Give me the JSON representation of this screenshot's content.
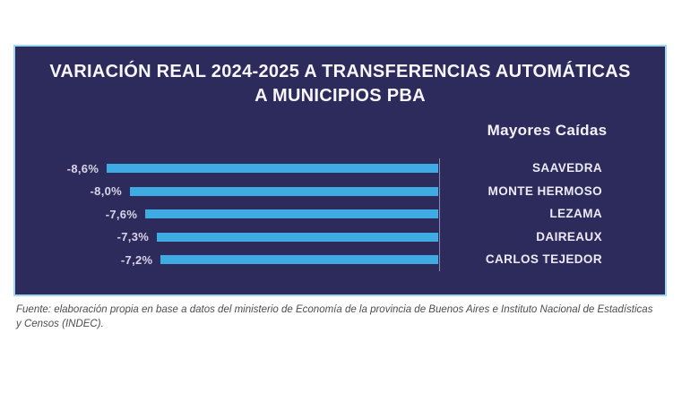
{
  "panel": {
    "title_line1": "VARIACIÓN REAL 2024-2025 A TRANSFERENCIAS AUTOMÁTICAS",
    "title_line2": "A MUNICIPIOS PBA",
    "legend": "Mayores Caídas"
  },
  "chart_data": {
    "type": "bar",
    "orientation": "horizontal",
    "title": "VARIACIÓN REAL 2024-2025 A TRANSFERENCIAS AUTOMÁTICAS A MUNICIPIOS PBA",
    "legend": "Mayores Caídas",
    "categories": [
      "SAAVEDRA",
      "MONTE HERMOSO",
      "LEZAMA",
      "DAIREAUX",
      "CARLOS TEJEDOR"
    ],
    "values": [
      -8.6,
      -8.0,
      -7.6,
      -7.3,
      -7.2
    ],
    "value_labels": [
      "-8,6%",
      "-8,0%",
      "-7,6%",
      "-7,3%",
      "-7,2%"
    ],
    "unit": "%",
    "xlim": [
      -9,
      0
    ],
    "grid": false,
    "axis_line": true,
    "bar_color": "#3eace3",
    "panel_color": "#2d2a5c",
    "border_color": "#9ed7f2",
    "label_color": "#edeaf7"
  },
  "source": {
    "lines": [
      "Fuente: elaboración propia en base a datos del ministerio de Economía de la provincia de Buenos Aires e Instituto Nacional de Estadísticas",
      "y Censos (INDEC)."
    ]
  }
}
